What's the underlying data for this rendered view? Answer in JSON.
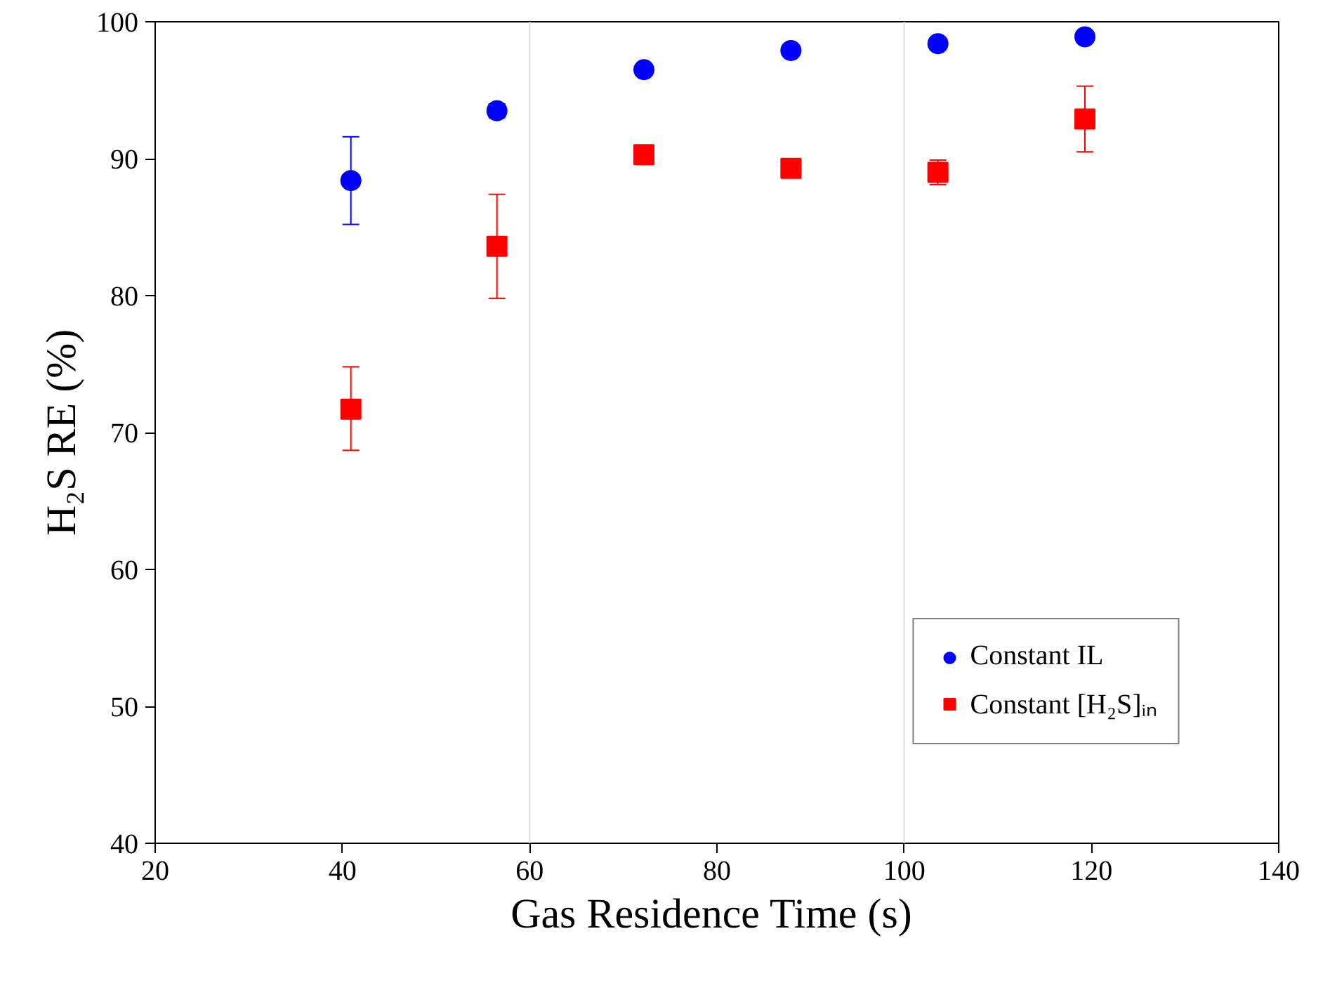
{
  "chart_data": {
    "type": "scatter",
    "xlabel": "Gas Residence Time  (s)",
    "ylabel": "H₂S RE (%)",
    "xlim": [
      20,
      140
    ],
    "xticks": [
      20,
      40,
      60,
      80,
      100,
      120,
      140
    ],
    "ylim": [
      40,
      100
    ],
    "yticks": [
      40,
      50,
      60,
      70,
      80,
      90,
      100
    ],
    "x": [
      40.9,
      56.5,
      72.2,
      87.9,
      103.6,
      119.3
    ],
    "series": [
      {
        "name": "Constant IL",
        "color": "#0000ff",
        "marker": "circle",
        "values": [
          88.4,
          93.5,
          96.5,
          97.9,
          98.4,
          98.9
        ],
        "errors": [
          3.2,
          0.5,
          0.3,
          0.3,
          0.3,
          0.2
        ]
      },
      {
        "name": "Constant [H₂S]ᵢₙ",
        "color": "#ff0000",
        "marker": "square",
        "values": [
          71.7,
          83.6,
          90.3,
          89.3,
          89.0,
          92.9
        ],
        "errors": [
          [
            68.7,
            74.8
          ],
          [
            79.8,
            87.4
          ],
          [
            89.7,
            90.9
          ],
          [
            88.7,
            89.9
          ],
          [
            88.1,
            89.9
          ],
          [
            90.5,
            95.3
          ]
        ]
      }
    ],
    "ref_lines": [
      {
        "axis": "x",
        "value": 60,
        "color": "#dddddd"
      },
      {
        "axis": "x",
        "value": 100,
        "color": "#dddddd"
      }
    ],
    "grid": false,
    "legend": "bottom right"
  }
}
